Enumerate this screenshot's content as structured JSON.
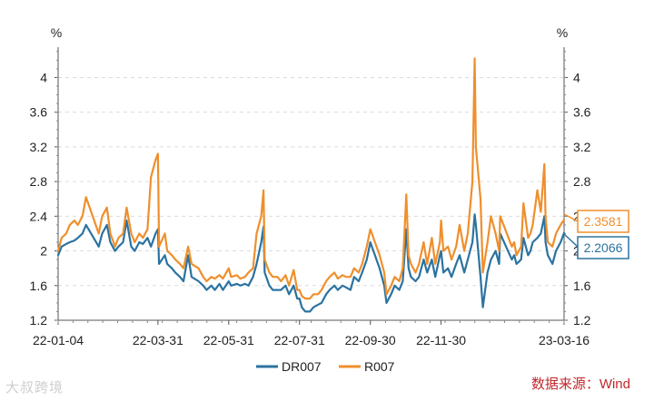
{
  "watermark": "大叔跨境",
  "source": "数据来源：Wind",
  "callouts": {
    "r007": "2.3581",
    "dr007": "2.2066"
  },
  "chart_data": {
    "type": "line",
    "y_unit_left": "%",
    "y_unit_right": "%",
    "ylim": [
      1.2,
      4.35
    ],
    "yticks": [
      1.2,
      1.6,
      2,
      2.4,
      2.8,
      3.2,
      3.6,
      4
    ],
    "ytick_labels": [
      "1.2",
      "1.6",
      "2",
      "2.4",
      "2.8",
      "3.2",
      "3.6",
      "4"
    ],
    "xlim": [
      "2022-01-04",
      "2023-03-16"
    ],
    "xticks": [
      "2022-01-04",
      "2022-03-31",
      "2022-05-31",
      "2022-07-31",
      "2022-09-30",
      "2022-11-30",
      "2023-03-16"
    ],
    "xtick_labels": [
      "22-01-04",
      "22-03-31",
      "22-05-31",
      "22-07-31",
      "22-09-30",
      "22-11-30",
      "23-03-16"
    ],
    "grid": true,
    "legend_position": "bottom",
    "colors": {
      "DR007": "#2b73a0",
      "R007": "#ef8f2c"
    },
    "series": [
      {
        "name": "DR007",
        "points": [
          [
            "2022-01-04",
            1.95
          ],
          [
            "2022-01-07",
            2.05
          ],
          [
            "2022-01-11",
            2.08
          ],
          [
            "2022-01-14",
            2.1
          ],
          [
            "2022-01-18",
            2.12
          ],
          [
            "2022-01-21",
            2.15
          ],
          [
            "2022-01-25",
            2.2
          ],
          [
            "2022-01-28",
            2.3
          ],
          [
            "2022-02-08",
            2.05
          ],
          [
            "2022-02-11",
            2.2
          ],
          [
            "2022-02-15",
            2.3
          ],
          [
            "2022-02-18",
            2.1
          ],
          [
            "2022-02-22",
            2.0
          ],
          [
            "2022-02-25",
            2.05
          ],
          [
            "2022-03-01",
            2.1
          ],
          [
            "2022-03-04",
            2.35
          ],
          [
            "2022-03-08",
            2.05
          ],
          [
            "2022-03-11",
            2.0
          ],
          [
            "2022-03-15",
            2.1
          ],
          [
            "2022-03-18",
            2.08
          ],
          [
            "2022-03-22",
            2.15
          ],
          [
            "2022-03-25",
            2.05
          ],
          [
            "2022-03-29",
            2.2
          ],
          [
            "2022-03-31",
            2.25
          ],
          [
            "2022-04-01",
            1.85
          ],
          [
            "2022-04-06",
            1.95
          ],
          [
            "2022-04-08",
            1.85
          ],
          [
            "2022-04-12",
            1.8
          ],
          [
            "2022-04-15",
            1.75
          ],
          [
            "2022-04-19",
            1.7
          ],
          [
            "2022-04-22",
            1.65
          ],
          [
            "2022-04-26",
            1.95
          ],
          [
            "2022-04-29",
            1.7
          ],
          [
            "2022-05-05",
            1.65
          ],
          [
            "2022-05-09",
            1.6
          ],
          [
            "2022-05-12",
            1.55
          ],
          [
            "2022-05-16",
            1.6
          ],
          [
            "2022-05-19",
            1.55
          ],
          [
            "2022-05-23",
            1.62
          ],
          [
            "2022-05-26",
            1.55
          ],
          [
            "2022-05-31",
            1.65
          ],
          [
            "2022-06-02",
            1.6
          ],
          [
            "2022-06-07",
            1.62
          ],
          [
            "2022-06-10",
            1.6
          ],
          [
            "2022-06-14",
            1.62
          ],
          [
            "2022-06-17",
            1.6
          ],
          [
            "2022-06-21",
            1.7
          ],
          [
            "2022-06-24",
            1.85
          ],
          [
            "2022-06-28",
            2.1
          ],
          [
            "2022-06-30",
            2.28
          ],
          [
            "2022-07-01",
            1.75
          ],
          [
            "2022-07-05",
            1.6
          ],
          [
            "2022-07-08",
            1.55
          ],
          [
            "2022-07-12",
            1.55
          ],
          [
            "2022-07-15",
            1.55
          ],
          [
            "2022-07-19",
            1.6
          ],
          [
            "2022-07-22",
            1.5
          ],
          [
            "2022-07-26",
            1.6
          ],
          [
            "2022-07-29",
            1.45
          ],
          [
            "2022-07-31",
            1.45
          ],
          [
            "2022-08-02",
            1.35
          ],
          [
            "2022-08-05",
            1.3
          ],
          [
            "2022-08-09",
            1.3
          ],
          [
            "2022-08-12",
            1.35
          ],
          [
            "2022-08-16",
            1.38
          ],
          [
            "2022-08-19",
            1.4
          ],
          [
            "2022-08-23",
            1.5
          ],
          [
            "2022-08-26",
            1.55
          ],
          [
            "2022-08-30",
            1.6
          ],
          [
            "2022-09-02",
            1.55
          ],
          [
            "2022-09-06",
            1.6
          ],
          [
            "2022-09-09",
            1.58
          ],
          [
            "2022-09-13",
            1.55
          ],
          [
            "2022-09-16",
            1.7
          ],
          [
            "2022-09-20",
            1.65
          ],
          [
            "2022-09-23",
            1.75
          ],
          [
            "2022-09-27",
            1.9
          ],
          [
            "2022-09-30",
            2.1
          ],
          [
            "2022-10-08",
            1.8
          ],
          [
            "2022-10-12",
            1.6
          ],
          [
            "2022-10-14",
            1.4
          ],
          [
            "2022-10-18",
            1.5
          ],
          [
            "2022-10-21",
            1.6
          ],
          [
            "2022-10-25",
            1.55
          ],
          [
            "2022-10-28",
            1.65
          ],
          [
            "2022-10-31",
            2.25
          ],
          [
            "2022-11-02",
            1.8
          ],
          [
            "2022-11-04",
            1.7
          ],
          [
            "2022-11-08",
            1.65
          ],
          [
            "2022-11-11",
            1.7
          ],
          [
            "2022-11-15",
            1.9
          ],
          [
            "2022-11-18",
            1.75
          ],
          [
            "2022-11-22",
            1.9
          ],
          [
            "2022-11-25",
            1.7
          ],
          [
            "2022-11-29",
            1.95
          ],
          [
            "2022-11-30",
            2.0
          ],
          [
            "2022-12-02",
            1.75
          ],
          [
            "2022-12-06",
            1.8
          ],
          [
            "2022-12-09",
            1.7
          ],
          [
            "2022-12-13",
            1.85
          ],
          [
            "2022-12-16",
            1.95
          ],
          [
            "2022-12-20",
            1.75
          ],
          [
            "2022-12-23",
            1.9
          ],
          [
            "2022-12-27",
            2.1
          ],
          [
            "2022-12-29",
            2.42
          ],
          [
            "2022-12-30",
            2.3
          ],
          [
            "2023-01-03",
            1.7
          ],
          [
            "2023-01-05",
            1.35
          ],
          [
            "2023-01-09",
            1.75
          ],
          [
            "2023-01-12",
            1.9
          ],
          [
            "2023-01-16",
            2.0
          ],
          [
            "2023-01-19",
            1.85
          ],
          [
            "2023-01-20",
            2.2
          ],
          [
            "2023-01-30",
            1.9
          ],
          [
            "2023-02-01",
            1.95
          ],
          [
            "2023-02-03",
            1.85
          ],
          [
            "2023-02-07",
            1.9
          ],
          [
            "2023-02-09",
            2.15
          ],
          [
            "2023-02-13",
            1.95
          ],
          [
            "2023-02-15",
            2.0
          ],
          [
            "2023-02-17",
            2.1
          ],
          [
            "2023-02-21",
            2.15
          ],
          [
            "2023-02-24",
            2.2
          ],
          [
            "2023-02-27",
            2.4
          ],
          [
            "2023-02-28",
            2.1
          ],
          [
            "2023-03-02",
            1.95
          ],
          [
            "2023-03-06",
            1.85
          ],
          [
            "2023-03-09",
            2.0
          ],
          [
            "2023-03-13",
            2.1
          ],
          [
            "2023-03-16",
            2.2066
          ]
        ]
      },
      {
        "name": "R007",
        "points": [
          [
            "2022-01-04",
            2.0
          ],
          [
            "2022-01-07",
            2.15
          ],
          [
            "2022-01-11",
            2.2
          ],
          [
            "2022-01-14",
            2.3
          ],
          [
            "2022-01-18",
            2.35
          ],
          [
            "2022-01-21",
            2.3
          ],
          [
            "2022-01-25",
            2.4
          ],
          [
            "2022-01-28",
            2.62
          ],
          [
            "2022-02-08",
            2.2
          ],
          [
            "2022-02-11",
            2.4
          ],
          [
            "2022-02-15",
            2.5
          ],
          [
            "2022-02-18",
            2.2
          ],
          [
            "2022-02-22",
            2.05
          ],
          [
            "2022-02-25",
            2.15
          ],
          [
            "2022-03-01",
            2.2
          ],
          [
            "2022-03-04",
            2.5
          ],
          [
            "2022-03-08",
            2.2
          ],
          [
            "2022-03-11",
            2.1
          ],
          [
            "2022-03-15",
            2.2
          ],
          [
            "2022-03-18",
            2.15
          ],
          [
            "2022-03-22",
            2.25
          ],
          [
            "2022-03-25",
            2.85
          ],
          [
            "2022-03-29",
            3.05
          ],
          [
            "2022-03-31",
            3.12
          ],
          [
            "2022-04-01",
            2.05
          ],
          [
            "2022-04-06",
            2.2
          ],
          [
            "2022-04-08",
            2.0
          ],
          [
            "2022-04-12",
            1.95
          ],
          [
            "2022-04-15",
            1.9
          ],
          [
            "2022-04-19",
            1.85
          ],
          [
            "2022-04-22",
            1.8
          ],
          [
            "2022-04-26",
            2.05
          ],
          [
            "2022-04-29",
            1.85
          ],
          [
            "2022-05-05",
            1.8
          ],
          [
            "2022-05-09",
            1.7
          ],
          [
            "2022-05-12",
            1.65
          ],
          [
            "2022-05-16",
            1.7
          ],
          [
            "2022-05-19",
            1.68
          ],
          [
            "2022-05-23",
            1.72
          ],
          [
            "2022-05-26",
            1.68
          ],
          [
            "2022-05-31",
            1.8
          ],
          [
            "2022-06-02",
            1.7
          ],
          [
            "2022-06-07",
            1.72
          ],
          [
            "2022-06-10",
            1.68
          ],
          [
            "2022-06-14",
            1.7
          ],
          [
            "2022-06-17",
            1.75
          ],
          [
            "2022-06-21",
            1.8
          ],
          [
            "2022-06-24",
            2.2
          ],
          [
            "2022-06-28",
            2.4
          ],
          [
            "2022-06-30",
            2.7
          ],
          [
            "2022-07-01",
            1.9
          ],
          [
            "2022-07-05",
            1.75
          ],
          [
            "2022-07-08",
            1.7
          ],
          [
            "2022-07-12",
            1.7
          ],
          [
            "2022-07-15",
            1.65
          ],
          [
            "2022-07-19",
            1.72
          ],
          [
            "2022-07-22",
            1.6
          ],
          [
            "2022-07-26",
            1.78
          ],
          [
            "2022-07-29",
            1.55
          ],
          [
            "2022-07-31",
            1.55
          ],
          [
            "2022-08-02",
            1.48
          ],
          [
            "2022-08-05",
            1.45
          ],
          [
            "2022-08-09",
            1.45
          ],
          [
            "2022-08-12",
            1.5
          ],
          [
            "2022-08-16",
            1.5
          ],
          [
            "2022-08-19",
            1.55
          ],
          [
            "2022-08-23",
            1.65
          ],
          [
            "2022-08-26",
            1.7
          ],
          [
            "2022-08-30",
            1.75
          ],
          [
            "2022-09-02",
            1.68
          ],
          [
            "2022-09-06",
            1.72
          ],
          [
            "2022-09-09",
            1.7
          ],
          [
            "2022-09-13",
            1.7
          ],
          [
            "2022-09-16",
            1.8
          ],
          [
            "2022-09-20",
            1.75
          ],
          [
            "2022-09-23",
            1.85
          ],
          [
            "2022-09-27",
            2.05
          ],
          [
            "2022-09-30",
            2.25
          ],
          [
            "2022-10-08",
            1.95
          ],
          [
            "2022-10-12",
            1.75
          ],
          [
            "2022-10-14",
            1.5
          ],
          [
            "2022-10-18",
            1.6
          ],
          [
            "2022-10-21",
            1.7
          ],
          [
            "2022-10-25",
            1.65
          ],
          [
            "2022-10-28",
            1.8
          ],
          [
            "2022-10-31",
            2.65
          ],
          [
            "2022-11-02",
            1.95
          ],
          [
            "2022-11-04",
            1.85
          ],
          [
            "2022-11-08",
            1.75
          ],
          [
            "2022-11-11",
            1.85
          ],
          [
            "2022-11-15",
            2.1
          ],
          [
            "2022-11-18",
            1.85
          ],
          [
            "2022-11-22",
            2.15
          ],
          [
            "2022-11-25",
            1.85
          ],
          [
            "2022-11-29",
            2.1
          ],
          [
            "2022-11-30",
            2.35
          ],
          [
            "2022-12-02",
            2.0
          ],
          [
            "2022-12-06",
            2.05
          ],
          [
            "2022-12-09",
            1.9
          ],
          [
            "2022-12-13",
            2.05
          ],
          [
            "2022-12-16",
            2.3
          ],
          [
            "2022-12-20",
            2.0
          ],
          [
            "2022-12-23",
            2.2
          ],
          [
            "2022-12-27",
            2.8
          ],
          [
            "2022-12-29",
            4.22
          ],
          [
            "2022-12-30",
            3.2
          ],
          [
            "2023-01-03",
            2.6
          ],
          [
            "2023-01-05",
            1.75
          ],
          [
            "2023-01-09",
            2.1
          ],
          [
            "2023-01-12",
            2.4
          ],
          [
            "2023-01-16",
            2.2
          ],
          [
            "2023-01-19",
            2.0
          ],
          [
            "2023-01-20",
            2.4
          ],
          [
            "2023-01-30",
            2.05
          ],
          [
            "2023-02-01",
            2.1
          ],
          [
            "2023-02-03",
            1.95
          ],
          [
            "2023-02-07",
            2.05
          ],
          [
            "2023-02-09",
            2.55
          ],
          [
            "2023-02-13",
            2.15
          ],
          [
            "2023-02-15",
            2.2
          ],
          [
            "2023-02-17",
            2.3
          ],
          [
            "2023-02-21",
            2.7
          ],
          [
            "2023-02-24",
            2.45
          ],
          [
            "2023-02-27",
            3.0
          ],
          [
            "2023-02-28",
            2.4
          ],
          [
            "2023-03-02",
            2.1
          ],
          [
            "2023-03-06",
            2.05
          ],
          [
            "2023-03-09",
            2.2
          ],
          [
            "2023-03-13",
            2.3
          ],
          [
            "2023-03-16",
            2.3581
          ]
        ]
      }
    ]
  }
}
